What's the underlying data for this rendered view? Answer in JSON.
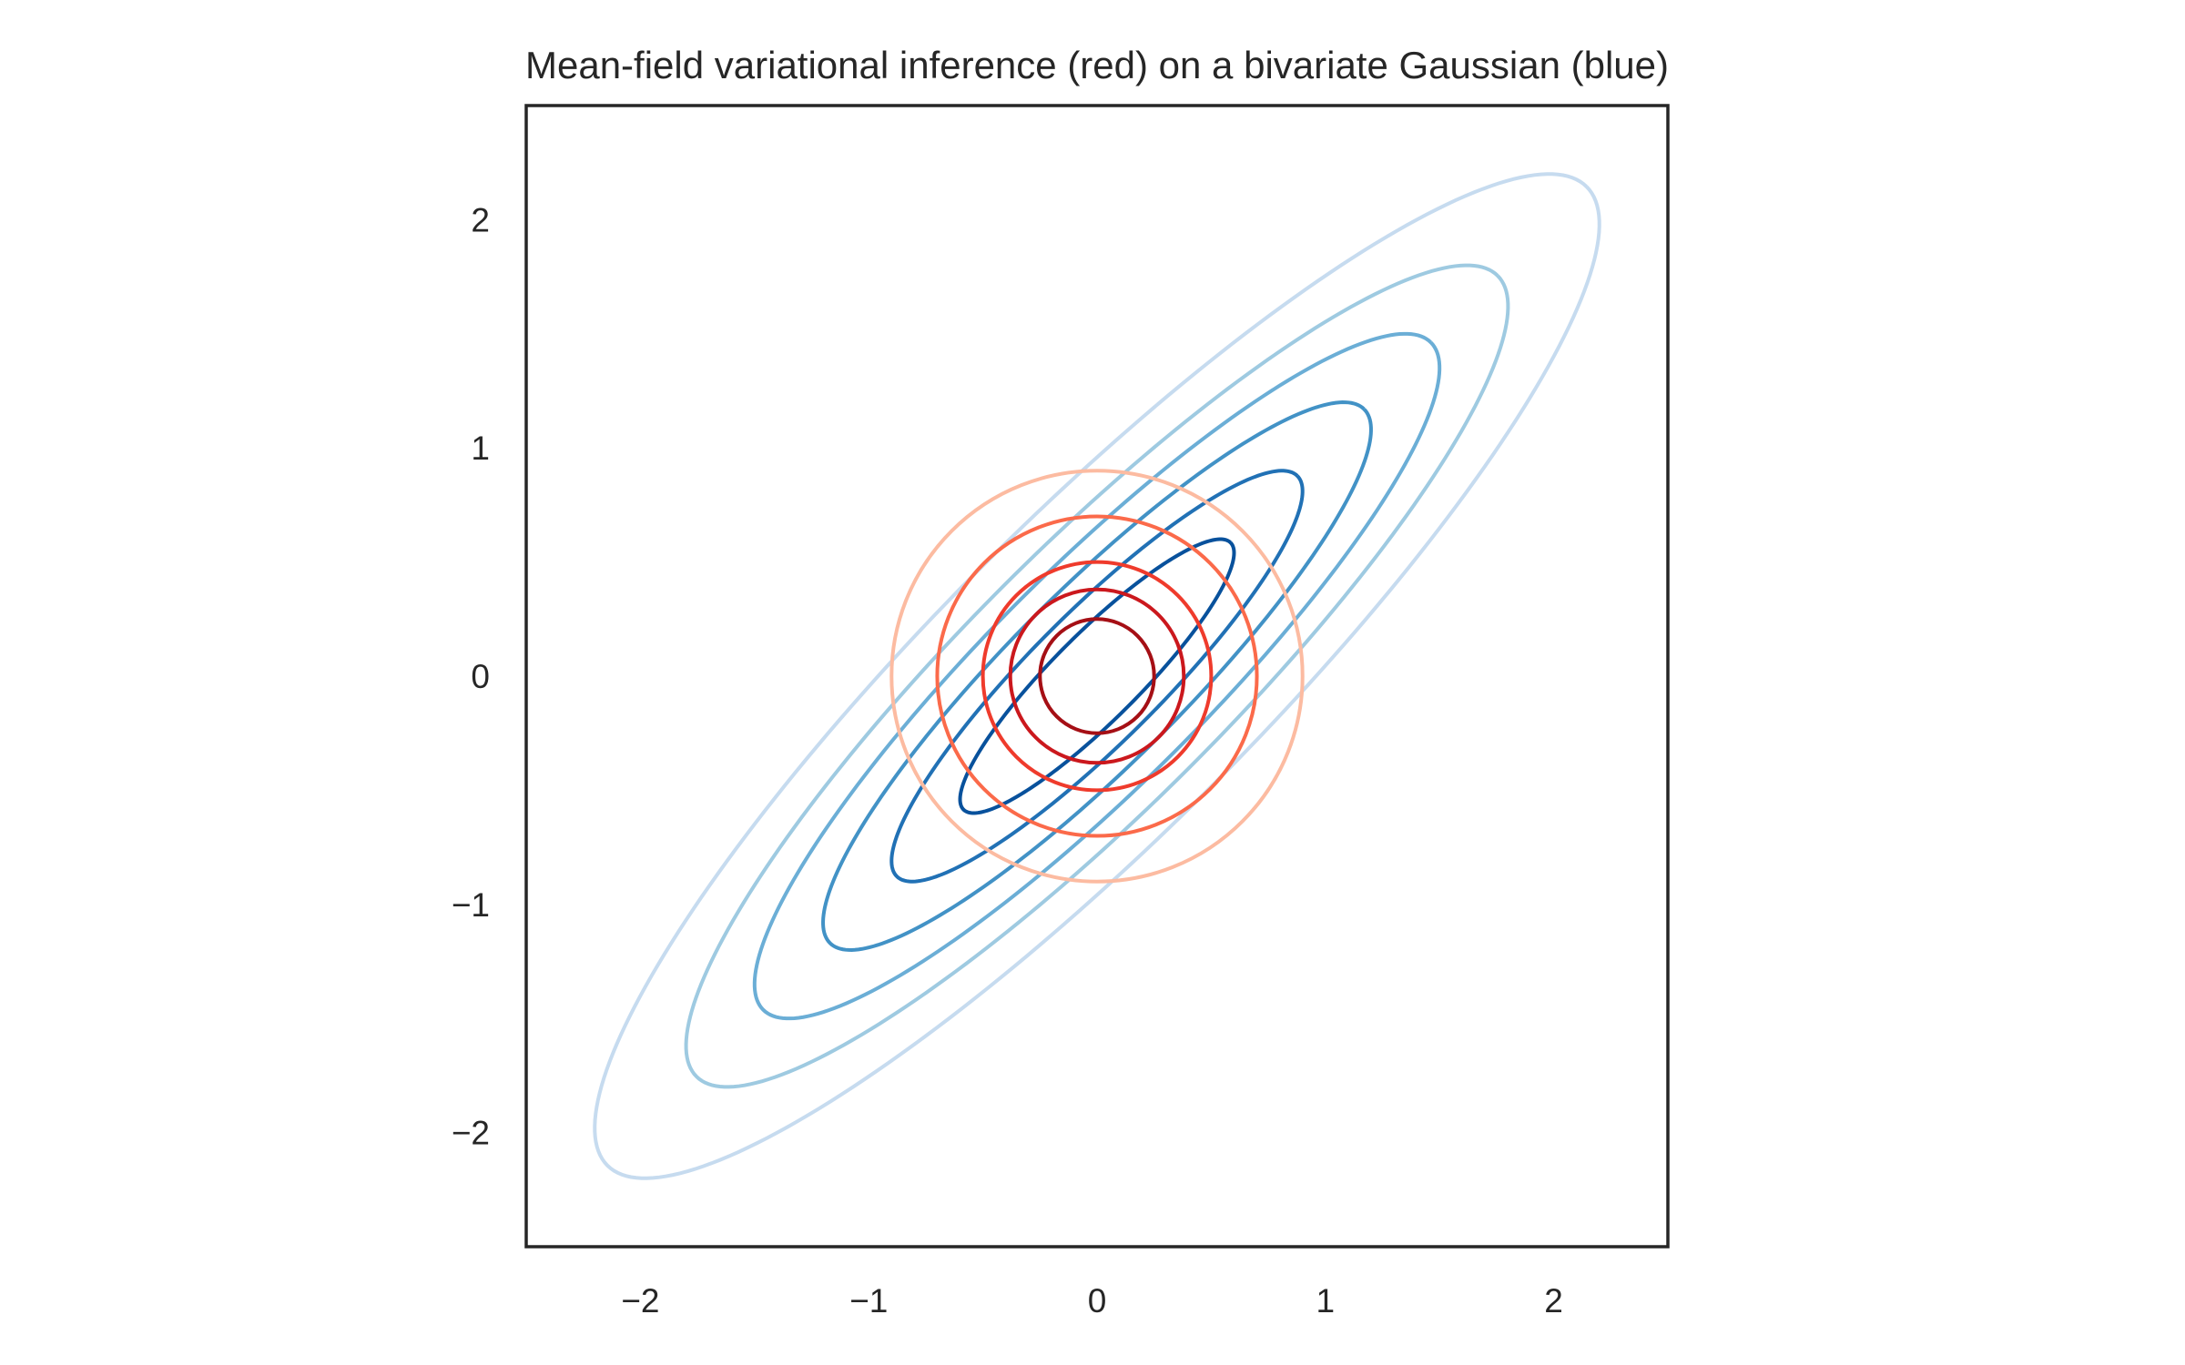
{
  "chart_data": {
    "type": "contour",
    "title": "Mean-field variational inference (red) on a bivariate Gaussian (blue)",
    "xlabel": "",
    "ylabel": "",
    "xlim": [
      -2.5,
      2.5
    ],
    "ylim": [
      -2.5,
      2.5
    ],
    "xticks": [
      -2,
      -1,
      0,
      1,
      2
    ],
    "yticks": [
      -2,
      -1,
      0,
      1,
      2
    ],
    "xtick_labels": [
      "−2",
      "−1",
      "0",
      "1",
      "2"
    ],
    "ytick_labels": [
      "−2",
      "−1",
      "0",
      "1",
      "2"
    ],
    "grid": false,
    "series": [
      {
        "colormap": "Blues",
        "mean": [
          0,
          0
        ],
        "covariance": [
          [
            1,
            0.9
          ],
          [
            0.9,
            1
          ]
        ],
        "contour_levels": [
          {
            "mahalanobis_radius": 0.6,
            "color": "#08519c"
          },
          {
            "mahalanobis_radius": 0.9,
            "color": "#2171b5"
          },
          {
            "mahalanobis_radius": 1.2,
            "color": "#4292c6"
          },
          {
            "mahalanobis_radius": 1.5,
            "color": "#6baed6"
          },
          {
            "mahalanobis_radius": 1.8,
            "color": "#9ecae1"
          },
          {
            "mahalanobis_radius": 2.2,
            "color": "#c6dbef"
          }
        ]
      },
      {
        "colormap": "Reds",
        "mean": [
          0,
          0
        ],
        "std": [
          0.4359,
          0.4359
        ],
        "contour_levels": [
          {
            "radius": 0.25,
            "color": "#a50f15"
          },
          {
            "radius": 0.38,
            "color": "#cb181d"
          },
          {
            "radius": 0.5,
            "color": "#ef3b2c"
          },
          {
            "radius": 0.7,
            "color": "#fb6a4a"
          },
          {
            "radius": 0.9,
            "color": "#fcbba1"
          }
        ]
      }
    ]
  }
}
